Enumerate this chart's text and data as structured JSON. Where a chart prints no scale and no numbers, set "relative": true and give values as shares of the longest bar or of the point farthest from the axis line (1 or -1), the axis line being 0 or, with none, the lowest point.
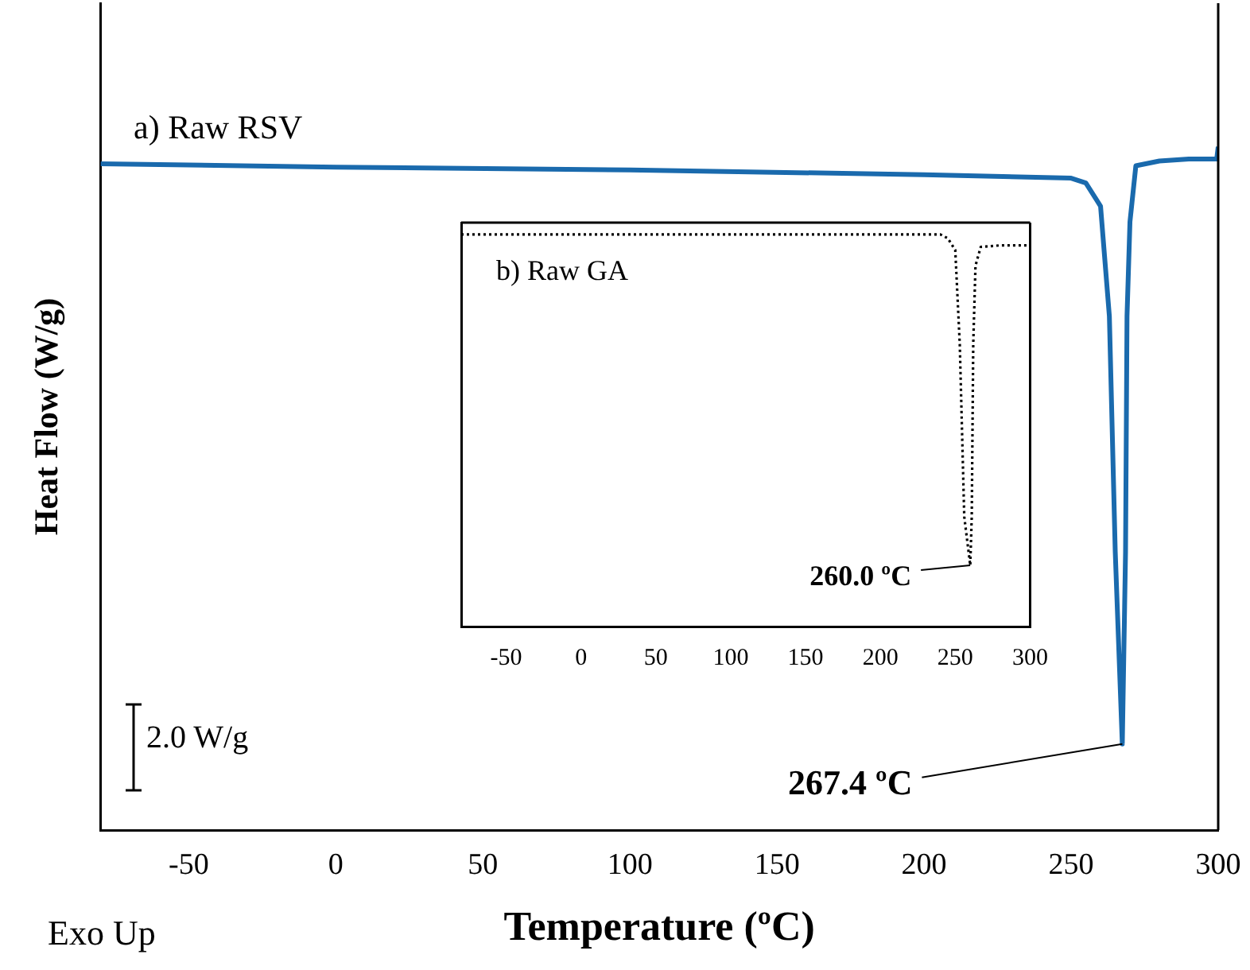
{
  "chart_data": [
    {
      "type": "line",
      "relative": true,
      "xlabel": "Temperature (ºC)",
      "ylabel": "Heat Flow (W/g)",
      "xlim": [
        -80,
        300
      ],
      "xticks": [
        -50,
        0,
        50,
        100,
        150,
        200,
        250,
        300
      ],
      "grid": false,
      "legend": false,
      "marker": "none",
      "line_style": "solid",
      "annotations": [
        "a) Raw RSV",
        "2.0 W/g",
        "Exo Up",
        {
          "text": "267.4 ºC",
          "x": 267.4,
          "y": 0.126
        }
      ],
      "x": [
        -80,
        0,
        100,
        200,
        250,
        255,
        260,
        263,
        265,
        267.4,
        268.5,
        269,
        270,
        272,
        280,
        290,
        299.5,
        300
      ],
      "series": [
        {
          "color": "#1a6aad",
          "values": [
            0.975,
            0.97,
            0.966,
            0.959,
            0.954,
            0.947,
            0.913,
            0.752,
            0.407,
            0.126,
            0.407,
            0.752,
            0.89,
            0.972,
            0.979,
            0.982,
            0.982,
            1
          ]
        }
      ]
    },
    {
      "type": "line",
      "relative": true,
      "xlim": [
        -80,
        300
      ],
      "xticks": [
        -50,
        0,
        50,
        100,
        150,
        200,
        250,
        300
      ],
      "grid": false,
      "legend": false,
      "marker": "none",
      "line_style": "dotted",
      "annotations": [
        "b) Raw GA",
        {
          "text": "260.0 ºC",
          "x": 260,
          "y": 0.156
        }
      ],
      "x": [
        -80,
        240,
        245,
        250,
        253,
        256,
        260,
        261,
        262,
        263.5,
        267,
        280,
        300
      ],
      "series": [
        {
          "color": "#000000",
          "values": [
            1,
            1,
            0.99,
            0.96,
            0.72,
            0.28,
            0.156,
            0.28,
            0.72,
            0.92,
            0.968,
            0.972,
            0.972
          ]
        }
      ]
    }
  ]
}
